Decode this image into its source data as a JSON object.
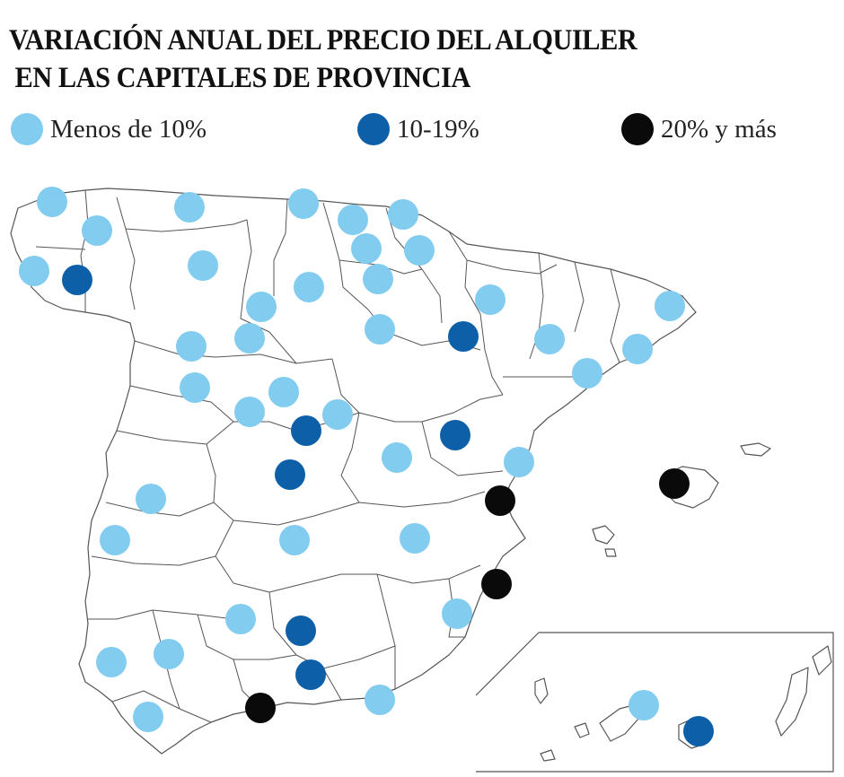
{
  "title": {
    "line1": "VARIACIÓN ANUAL DEL PRECIO DEL ALQUILER",
    "line2": "EN LAS CAPITALES DE PROVINCIA"
  },
  "legend": [
    {
      "label": "Menos de 10%",
      "color": "#82ccef",
      "category": "low"
    },
    {
      "label": "10-19%",
      "color": "#0d60a8",
      "category": "mid"
    },
    {
      "label": "20% y más",
      "color": "#0a0a0a",
      "category": "high"
    }
  ],
  "colors": {
    "low": "#82ccef",
    "mid": "#0d60a8",
    "high": "#0a0a0a",
    "border": "#555555"
  },
  "markers": [
    {
      "category": "low"
    },
    {
      "category": "low"
    },
    {
      "category": "low"
    },
    {
      "category": "low"
    },
    {
      "category": "low"
    },
    {
      "category": "low"
    },
    {
      "category": "low"
    },
    {
      "category": "mid"
    },
    {
      "category": "low"
    },
    {
      "category": "low"
    },
    {
      "category": "low"
    },
    {
      "category": "low"
    },
    {
      "category": "low"
    },
    {
      "category": "low"
    },
    {
      "category": "low"
    },
    {
      "category": "low"
    },
    {
      "category": "low"
    },
    {
      "category": "low"
    },
    {
      "category": "low"
    },
    {
      "category": "mid"
    },
    {
      "category": "low"
    },
    {
      "category": "low"
    },
    {
      "category": "low"
    },
    {
      "category": "low"
    },
    {
      "category": "mid"
    },
    {
      "category": "low"
    },
    {
      "category": "mid"
    },
    {
      "category": "low"
    },
    {
      "category": "mid"
    },
    {
      "category": "low"
    },
    {
      "category": "high"
    },
    {
      "category": "high"
    },
    {
      "category": "low"
    },
    {
      "category": "low"
    },
    {
      "category": "low"
    },
    {
      "category": "high"
    },
    {
      "category": "low"
    },
    {
      "category": "low"
    },
    {
      "category": "mid"
    },
    {
      "category": "low"
    },
    {
      "category": "low"
    },
    {
      "category": "mid"
    },
    {
      "category": "low"
    },
    {
      "category": "high"
    },
    {
      "category": "low"
    },
    {
      "category": "low"
    },
    {
      "category": "mid"
    }
  ]
}
